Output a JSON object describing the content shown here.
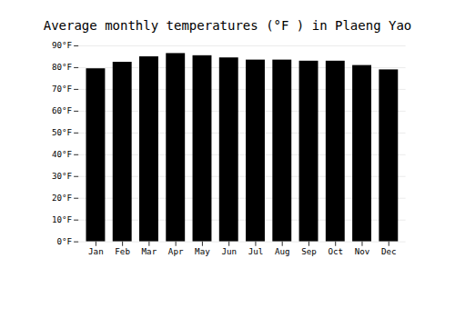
{
  "chart_data": {
    "type": "bar",
    "title": "Average monthly temperatures (°F ) in Plaeng Yao",
    "categories": [
      "Jan",
      "Feb",
      "Mar",
      "Apr",
      "May",
      "Jun",
      "Jul",
      "Aug",
      "Sep",
      "Oct",
      "Nov",
      "Dec"
    ],
    "values": [
      79.5,
      82.5,
      85.0,
      86.5,
      85.5,
      84.5,
      83.5,
      83.5,
      83.0,
      83.0,
      81.0,
      79.0
    ],
    "ylim": [
      0,
      90
    ],
    "yticks": [
      {
        "value": 0,
        "label": "0°F"
      },
      {
        "value": 10,
        "label": "10°F"
      },
      {
        "value": 20,
        "label": "20°F"
      },
      {
        "value": 30,
        "label": "30°F"
      },
      {
        "value": 40,
        "label": "40°F"
      },
      {
        "value": 50,
        "label": "50°F"
      },
      {
        "value": 60,
        "label": "60°F"
      },
      {
        "value": 70,
        "label": "70°F"
      },
      {
        "value": 80,
        "label": "80°F"
      },
      {
        "value": 90,
        "label": "90°F"
      }
    ],
    "grid": true
  }
}
